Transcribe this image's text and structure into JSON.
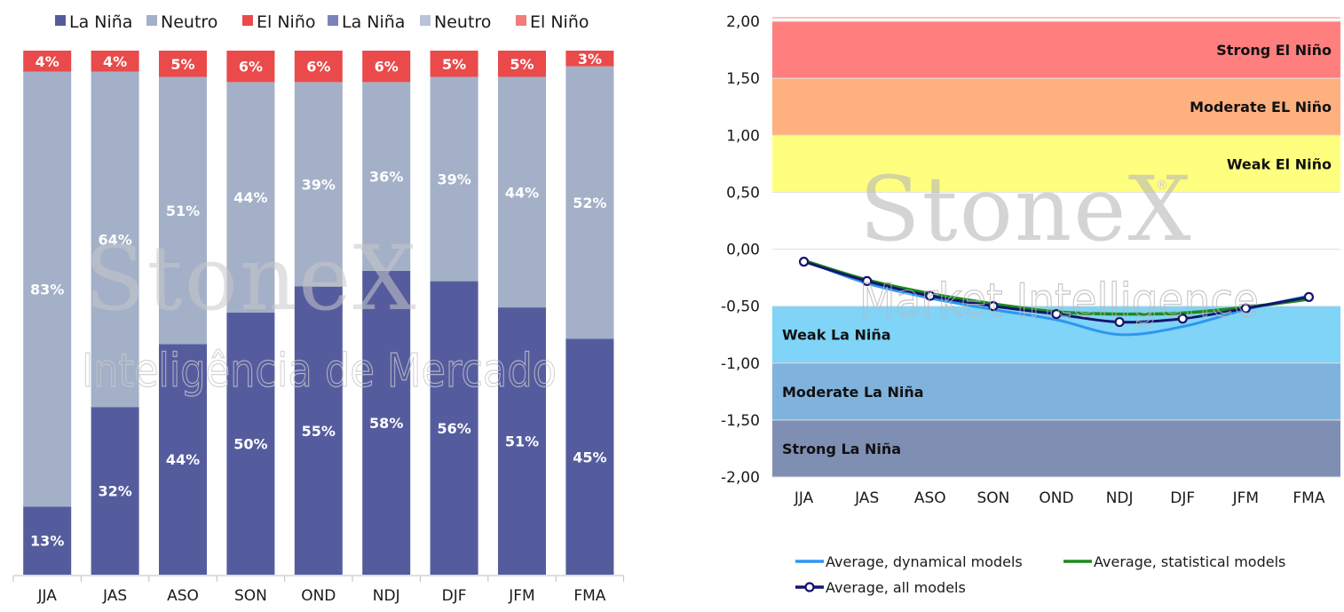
{
  "chart_data": [
    {
      "type": "bar",
      "stacked": true,
      "percent": true,
      "categories": [
        "JJA",
        "JAS",
        "ASO",
        "SON",
        "OND",
        "NDJ",
        "DJF",
        "JFM",
        "FMA"
      ],
      "series": [
        {
          "name": "La Niña",
          "values": [
            13,
            32,
            44,
            50,
            55,
            58,
            56,
            51,
            45
          ],
          "color": "#555c9e"
        },
        {
          "name": "Neutro",
          "values": [
            83,
            64,
            51,
            44,
            39,
            36,
            39,
            44,
            52
          ],
          "color": "#a3b0c8"
        },
        {
          "name": "El Niño",
          "values": [
            4,
            4,
            5,
            6,
            6,
            6,
            5,
            5,
            3
          ],
          "color": "#ea4a4a"
        }
      ],
      "legend": [
        {
          "name": "La Niña",
          "color": "#555c9e"
        },
        {
          "name": "Neutro",
          "color": "#a3b0c8"
        },
        {
          "name": "El Niño",
          "color": "#ea4a4a"
        },
        {
          "name": "La Niña",
          "color": "#7b82bb"
        },
        {
          "name": "Neutro",
          "color": "#b9c4d8"
        },
        {
          "name": "El Niño",
          "color": "#f27b7b"
        }
      ],
      "legend_position": "top",
      "ylim": [
        0,
        100
      ]
    },
    {
      "type": "line",
      "x": [
        "JJA",
        "JAS",
        "ASO",
        "SON",
        "OND",
        "NDJ",
        "DJF",
        "JFM",
        "FMA"
      ],
      "yticks": [
        "2,00",
        "1,50",
        "1,00",
        "0,50",
        "0,00",
        "-0,50",
        "-1,00",
        "-1,50",
        "-2,00"
      ],
      "ylim": [
        -2.0,
        2.0
      ],
      "series": [
        {
          "name": "Average, dynamical models",
          "values": [
            -0.1,
            -0.3,
            -0.43,
            -0.53,
            -0.62,
            -0.75,
            -0.68,
            -0.53,
            -0.41
          ],
          "color": "#2e96f0"
        },
        {
          "name": "Average, statistical models",
          "values": [
            -0.1,
            -0.27,
            -0.39,
            -0.48,
            -0.55,
            -0.57,
            -0.56,
            -0.51,
            -0.44
          ],
          "color": "#1d8a1d"
        },
        {
          "name": "Average, all models",
          "values": [
            -0.11,
            -0.28,
            -0.41,
            -0.5,
            -0.57,
            -0.64,
            -0.61,
            -0.52,
            -0.42
          ],
          "color": "#14156e"
        }
      ],
      "bands": [
        {
          "label": "Strong El Niño",
          "from": 1.5,
          "to": 2.0,
          "color": "#ff7f7f"
        },
        {
          "label": "Moderate EL Niño",
          "from": 1.0,
          "to": 1.5,
          "color": "#ffb07f"
        },
        {
          "label": "Weak El Niño",
          "from": 0.5,
          "to": 1.0,
          "color": "#ffff7f"
        },
        {
          "label": "Weak La Niña",
          "from": -1.0,
          "to": -0.5,
          "color": "#7fd4f7"
        },
        {
          "label": "Moderate La Niña",
          "from": -1.5,
          "to": -1.0,
          "color": "#7fb3dd"
        },
        {
          "label": "Strong La Niña",
          "from": -2.0,
          "to": -1.5,
          "color": "#7f8fb3"
        }
      ],
      "legend_position": "bottom"
    }
  ],
  "watermark": {
    "brand": "StoneX",
    "left_subtitle": "Inteligência de Mercado",
    "right_subtitle": "Market Intelligence"
  }
}
